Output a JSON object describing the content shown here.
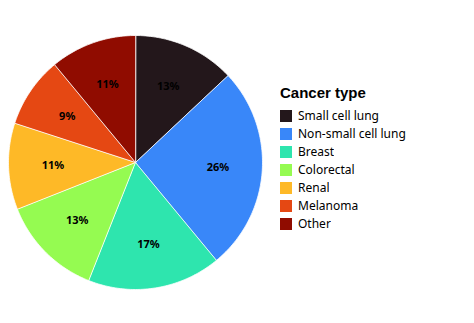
{
  "chart_data": {
    "type": "pie",
    "title": "Cancer type",
    "categories": [
      "Small cell lung",
      "Non-small cell lung",
      "Breast",
      "Colorectal",
      "Renal",
      "Melanoma",
      "Other"
    ],
    "values": [
      13,
      26,
      17,
      13,
      11,
      9,
      11
    ],
    "value_labels": [
      "13%",
      "26%",
      "17%",
      "13%",
      "11%",
      "9%",
      "11%"
    ],
    "data_labels": true,
    "legend": "right"
  }
}
